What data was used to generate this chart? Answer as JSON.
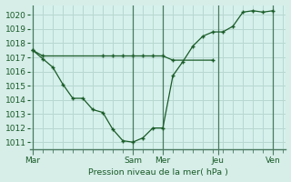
{
  "bg_color": "#d6ede8",
  "plot_bg_color": "#d6f0ec",
  "grid_color": "#b8d8d0",
  "line_color": "#1a5c28",
  "marker_color": "#1a5c28",
  "ylabel": "Pression niveau de la mer( hPa )",
  "ylim": [
    1010.5,
    1020.7
  ],
  "yticks": [
    1011,
    1012,
    1013,
    1014,
    1015,
    1016,
    1017,
    1018,
    1019,
    1020
  ],
  "day_labels": [
    "Mar",
    "Sam",
    "Mer",
    "Jeu",
    "Ven"
  ],
  "day_x": [
    0,
    10,
    13,
    18.5,
    24
  ],
  "vline_x": [
    0,
    10,
    13,
    18.5,
    24
  ],
  "xlim": [
    -0.3,
    25.3
  ],
  "series1_x": [
    0,
    1,
    2,
    3,
    4,
    5,
    6,
    7,
    8,
    9,
    10,
    11,
    12,
    13,
    14,
    15,
    16,
    17,
    18,
    19,
    20,
    21,
    22,
    23,
    24
  ],
  "series1_y": [
    1017.5,
    1016.9,
    1016.3,
    1015.1,
    1014.1,
    1014.1,
    1013.3,
    1013.1,
    1011.9,
    1011.1,
    1011.0,
    1011.3,
    1012.0,
    1012.0,
    1015.7,
    1016.7,
    1017.8,
    1018.5,
    1018.8,
    1018.8,
    1019.2,
    1020.2,
    1020.3,
    1020.2,
    1020.3
  ],
  "series2_x": [
    0,
    1,
    7,
    8,
    9,
    10,
    11,
    12,
    13,
    14,
    18
  ],
  "series2_y": [
    1017.5,
    1017.1,
    1017.1,
    1017.1,
    1017.1,
    1017.1,
    1017.1,
    1017.1,
    1017.1,
    1016.8,
    1016.8
  ]
}
